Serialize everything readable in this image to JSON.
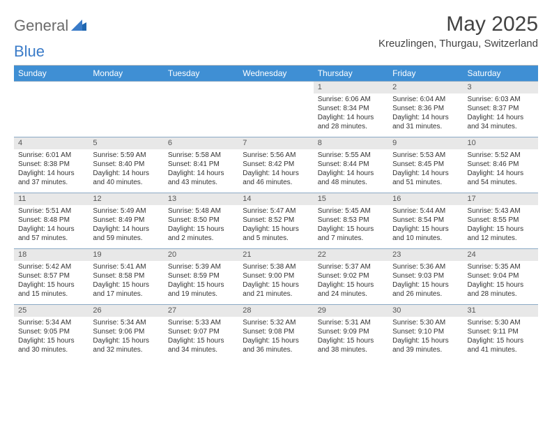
{
  "brand": {
    "general": "General",
    "blue": "Blue"
  },
  "title": "May 2025",
  "location": "Kreuzlingen, Thurgau, Switzerland",
  "colors": {
    "header_bg": "#3f8fd4",
    "header_text": "#ffffff",
    "daynum_bg": "#e8e8e8",
    "daynum_text": "#555555",
    "body_text": "#333333",
    "rule": "#3a7bc8",
    "logo_gray": "#6b6b6b",
    "logo_blue": "#3a7bc8"
  },
  "fonts": {
    "title_pt": 30,
    "location_pt": 15,
    "header_pt": 12,
    "daynum_pt": 11,
    "cell_pt": 10
  },
  "weekdays": [
    "Sunday",
    "Monday",
    "Tuesday",
    "Wednesday",
    "Thursday",
    "Friday",
    "Saturday"
  ],
  "weeks": [
    [
      null,
      null,
      null,
      null,
      {
        "n": "1",
        "sr": "Sunrise: 6:06 AM",
        "ss": "Sunset: 8:34 PM",
        "d1": "Daylight: 14 hours",
        "d2": "and 28 minutes."
      },
      {
        "n": "2",
        "sr": "Sunrise: 6:04 AM",
        "ss": "Sunset: 8:36 PM",
        "d1": "Daylight: 14 hours",
        "d2": "and 31 minutes."
      },
      {
        "n": "3",
        "sr": "Sunrise: 6:03 AM",
        "ss": "Sunset: 8:37 PM",
        "d1": "Daylight: 14 hours",
        "d2": "and 34 minutes."
      }
    ],
    [
      {
        "n": "4",
        "sr": "Sunrise: 6:01 AM",
        "ss": "Sunset: 8:38 PM",
        "d1": "Daylight: 14 hours",
        "d2": "and 37 minutes."
      },
      {
        "n": "5",
        "sr": "Sunrise: 5:59 AM",
        "ss": "Sunset: 8:40 PM",
        "d1": "Daylight: 14 hours",
        "d2": "and 40 minutes."
      },
      {
        "n": "6",
        "sr": "Sunrise: 5:58 AM",
        "ss": "Sunset: 8:41 PM",
        "d1": "Daylight: 14 hours",
        "d2": "and 43 minutes."
      },
      {
        "n": "7",
        "sr": "Sunrise: 5:56 AM",
        "ss": "Sunset: 8:42 PM",
        "d1": "Daylight: 14 hours",
        "d2": "and 46 minutes."
      },
      {
        "n": "8",
        "sr": "Sunrise: 5:55 AM",
        "ss": "Sunset: 8:44 PM",
        "d1": "Daylight: 14 hours",
        "d2": "and 48 minutes."
      },
      {
        "n": "9",
        "sr": "Sunrise: 5:53 AM",
        "ss": "Sunset: 8:45 PM",
        "d1": "Daylight: 14 hours",
        "d2": "and 51 minutes."
      },
      {
        "n": "10",
        "sr": "Sunrise: 5:52 AM",
        "ss": "Sunset: 8:46 PM",
        "d1": "Daylight: 14 hours",
        "d2": "and 54 minutes."
      }
    ],
    [
      {
        "n": "11",
        "sr": "Sunrise: 5:51 AM",
        "ss": "Sunset: 8:48 PM",
        "d1": "Daylight: 14 hours",
        "d2": "and 57 minutes."
      },
      {
        "n": "12",
        "sr": "Sunrise: 5:49 AM",
        "ss": "Sunset: 8:49 PM",
        "d1": "Daylight: 14 hours",
        "d2": "and 59 minutes."
      },
      {
        "n": "13",
        "sr": "Sunrise: 5:48 AM",
        "ss": "Sunset: 8:50 PM",
        "d1": "Daylight: 15 hours",
        "d2": "and 2 minutes."
      },
      {
        "n": "14",
        "sr": "Sunrise: 5:47 AM",
        "ss": "Sunset: 8:52 PM",
        "d1": "Daylight: 15 hours",
        "d2": "and 5 minutes."
      },
      {
        "n": "15",
        "sr": "Sunrise: 5:45 AM",
        "ss": "Sunset: 8:53 PM",
        "d1": "Daylight: 15 hours",
        "d2": "and 7 minutes."
      },
      {
        "n": "16",
        "sr": "Sunrise: 5:44 AM",
        "ss": "Sunset: 8:54 PM",
        "d1": "Daylight: 15 hours",
        "d2": "and 10 minutes."
      },
      {
        "n": "17",
        "sr": "Sunrise: 5:43 AM",
        "ss": "Sunset: 8:55 PM",
        "d1": "Daylight: 15 hours",
        "d2": "and 12 minutes."
      }
    ],
    [
      {
        "n": "18",
        "sr": "Sunrise: 5:42 AM",
        "ss": "Sunset: 8:57 PM",
        "d1": "Daylight: 15 hours",
        "d2": "and 15 minutes."
      },
      {
        "n": "19",
        "sr": "Sunrise: 5:41 AM",
        "ss": "Sunset: 8:58 PM",
        "d1": "Daylight: 15 hours",
        "d2": "and 17 minutes."
      },
      {
        "n": "20",
        "sr": "Sunrise: 5:39 AM",
        "ss": "Sunset: 8:59 PM",
        "d1": "Daylight: 15 hours",
        "d2": "and 19 minutes."
      },
      {
        "n": "21",
        "sr": "Sunrise: 5:38 AM",
        "ss": "Sunset: 9:00 PM",
        "d1": "Daylight: 15 hours",
        "d2": "and 21 minutes."
      },
      {
        "n": "22",
        "sr": "Sunrise: 5:37 AM",
        "ss": "Sunset: 9:02 PM",
        "d1": "Daylight: 15 hours",
        "d2": "and 24 minutes."
      },
      {
        "n": "23",
        "sr": "Sunrise: 5:36 AM",
        "ss": "Sunset: 9:03 PM",
        "d1": "Daylight: 15 hours",
        "d2": "and 26 minutes."
      },
      {
        "n": "24",
        "sr": "Sunrise: 5:35 AM",
        "ss": "Sunset: 9:04 PM",
        "d1": "Daylight: 15 hours",
        "d2": "and 28 minutes."
      }
    ],
    [
      {
        "n": "25",
        "sr": "Sunrise: 5:34 AM",
        "ss": "Sunset: 9:05 PM",
        "d1": "Daylight: 15 hours",
        "d2": "and 30 minutes."
      },
      {
        "n": "26",
        "sr": "Sunrise: 5:34 AM",
        "ss": "Sunset: 9:06 PM",
        "d1": "Daylight: 15 hours",
        "d2": "and 32 minutes."
      },
      {
        "n": "27",
        "sr": "Sunrise: 5:33 AM",
        "ss": "Sunset: 9:07 PM",
        "d1": "Daylight: 15 hours",
        "d2": "and 34 minutes."
      },
      {
        "n": "28",
        "sr": "Sunrise: 5:32 AM",
        "ss": "Sunset: 9:08 PM",
        "d1": "Daylight: 15 hours",
        "d2": "and 36 minutes."
      },
      {
        "n": "29",
        "sr": "Sunrise: 5:31 AM",
        "ss": "Sunset: 9:09 PM",
        "d1": "Daylight: 15 hours",
        "d2": "and 38 minutes."
      },
      {
        "n": "30",
        "sr": "Sunrise: 5:30 AM",
        "ss": "Sunset: 9:10 PM",
        "d1": "Daylight: 15 hours",
        "d2": "and 39 minutes."
      },
      {
        "n": "31",
        "sr": "Sunrise: 5:30 AM",
        "ss": "Sunset: 9:11 PM",
        "d1": "Daylight: 15 hours",
        "d2": "and 41 minutes."
      }
    ]
  ]
}
